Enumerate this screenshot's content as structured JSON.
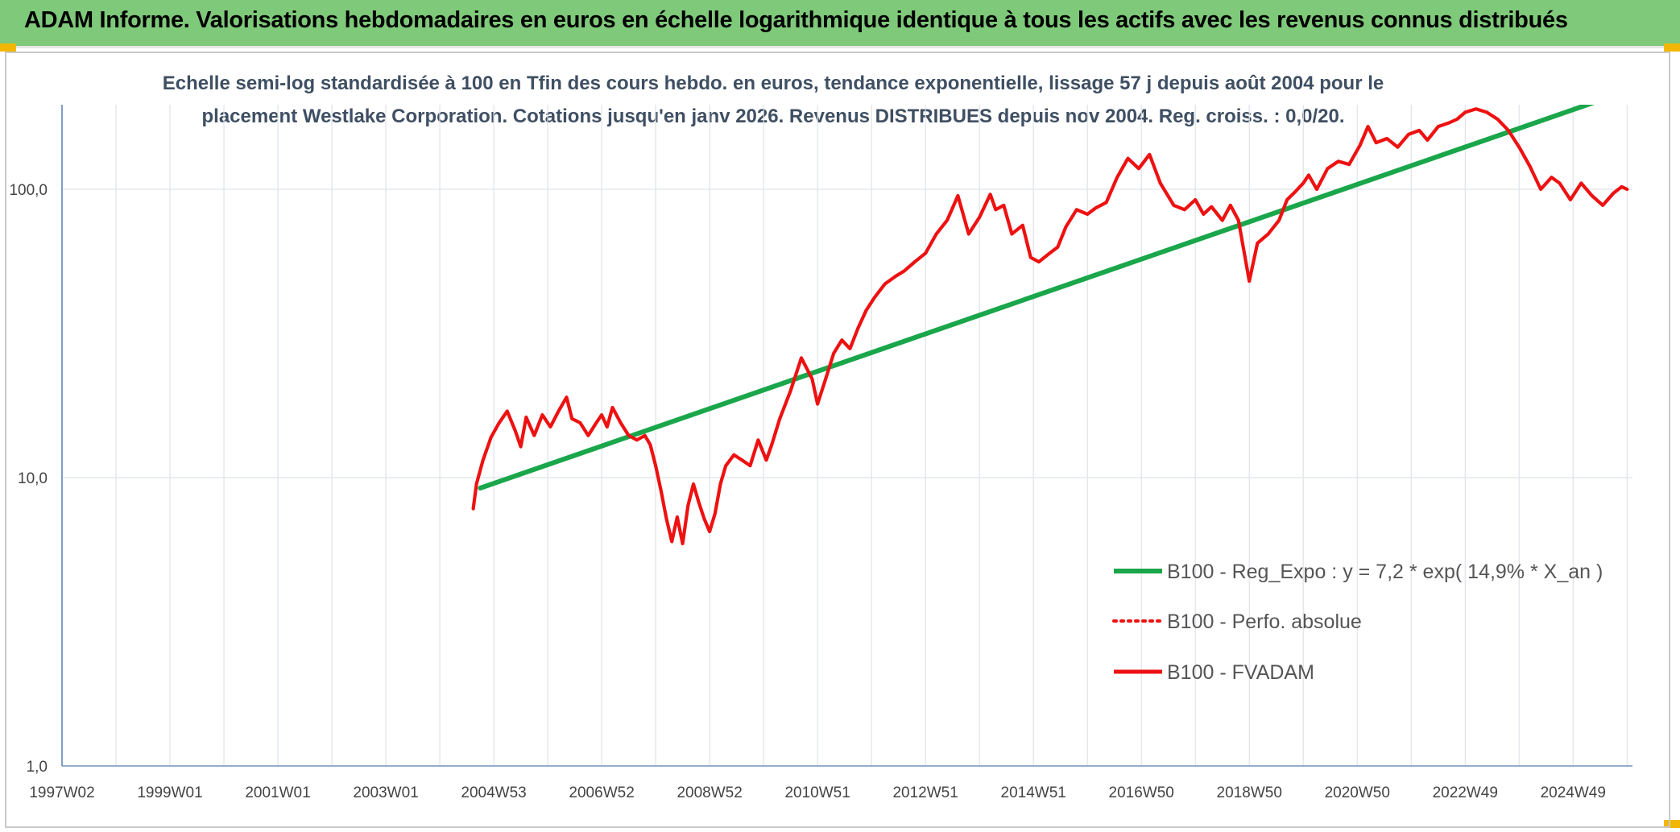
{
  "header": {
    "title": "ADAM Informe. Valorisations hebdomadaires en euros en échelle logarithmique identique à tous les actifs avec les revenus connus distribués"
  },
  "colors": {
    "banner": "#7fc97a",
    "corner_marker": "#f2b705",
    "trend_line": "#1aa64a",
    "price_line": "#ee1111",
    "subtitle_text": "#3f4f63"
  },
  "chart_data": {
    "type": "line",
    "title_line1": "Echelle semi-log standardisée à 100 en Tfin des cours hebdo. en euros, tendance exponentielle, lissage 57 j depuis août 2004 pour le",
    "title_line2": "placement Westlake Corporation. Cotations jusqu'en janv 2026. Revenus DISTRIBUES depuis nov 2004. Reg. croiss. : 0,0/20.",
    "y_scale": "log",
    "ylim": [
      1,
      190
    ],
    "y_ticks": [
      1,
      10,
      100
    ],
    "y_tick_labels": [
      "1,0",
      "10,0",
      "100,0"
    ],
    "xlim": [
      1997.0,
      2026.1
    ],
    "x_tick_positions": [
      1997.0,
      1999.0,
      2001.0,
      2003.0,
      2005.0,
      2007.0,
      2009.0,
      2011.0,
      2013.0,
      2015.0,
      2017.0,
      2019.0,
      2021.0,
      2023.0,
      2025.0
    ],
    "x_tick_labels": [
      "1997W02",
      "1999W01",
      "2001W01",
      "2003W01",
      "2004W53",
      "2006W52",
      "2008W52",
      "2010W51",
      "2012W51",
      "2014W51",
      "2016W50",
      "2018W50",
      "2020W50",
      "2022W49",
      "2024W49"
    ],
    "grid": true,
    "legend_placement": "right",
    "series": [
      {
        "name": "B100 - Reg_Expo : y = 7,2 * exp( 14,9% *  X_an )",
        "style": "solid-thick",
        "color": "#1aa64a",
        "x": [
          2004.75,
          2025.55
        ],
        "y": [
          9.2,
          205
        ]
      },
      {
        "name": "B100 - Perfo. absolue",
        "style": "dotted",
        "color": "#ee1111",
        "x": [],
        "y": []
      },
      {
        "name": "B100 - FVADAM",
        "style": "solid",
        "color": "#ee1111",
        "x": [
          2004.62,
          2004.68,
          2004.8,
          2004.95,
          2005.1,
          2005.25,
          2005.4,
          2005.5,
          2005.6,
          2005.75,
          2005.9,
          2006.05,
          2006.2,
          2006.35,
          2006.45,
          2006.6,
          2006.75,
          2006.9,
          2007.0,
          2007.1,
          2007.2,
          2007.35,
          2007.5,
          2007.65,
          2007.8,
          2007.9,
          2008.0,
          2008.1,
          2008.2,
          2008.3,
          2008.4,
          2008.5,
          2008.6,
          2008.7,
          2008.8,
          2008.9,
          2009.0,
          2009.1,
          2009.2,
          2009.3,
          2009.45,
          2009.6,
          2009.75,
          2009.9,
          2010.05,
          2010.15,
          2010.3,
          2010.5,
          2010.7,
          2010.9,
          2011.0,
          2011.15,
          2011.3,
          2011.45,
          2011.6,
          2011.75,
          2011.9,
          2012.05,
          2012.25,
          2012.45,
          2012.6,
          2012.8,
          2013.0,
          2013.2,
          2013.4,
          2013.6,
          2013.8,
          2014.0,
          2014.2,
          2014.3,
          2014.45,
          2014.6,
          2014.8,
          2014.95,
          2015.1,
          2015.3,
          2015.45,
          2015.6,
          2015.8,
          2016.0,
          2016.15,
          2016.35,
          2016.55,
          2016.75,
          2016.95,
          2017.15,
          2017.35,
          2017.6,
          2017.8,
          2018.0,
          2018.15,
          2018.3,
          2018.5,
          2018.65,
          2018.8,
          2019.0,
          2019.15,
          2019.35,
          2019.55,
          2019.7,
          2019.85,
          2020.0,
          2020.1,
          2020.25,
          2020.45,
          2020.65,
          2020.85,
          2021.05,
          2021.2,
          2021.35,
          2021.55,
          2021.75,
          2021.95,
          2022.15,
          2022.3,
          2022.5,
          2022.7,
          2022.85,
          2023.0,
          2023.2,
          2023.4,
          2023.6,
          2023.8,
          2024.0,
          2024.2,
          2024.4,
          2024.6,
          2024.75,
          2024.95,
          2025.15,
          2025.35,
          2025.55,
          2025.75,
          2025.9,
          2026.0
        ],
        "y": [
          7.8,
          9.5,
          11.5,
          13.8,
          15.5,
          17.0,
          14.5,
          12.8,
          16.2,
          14.0,
          16.5,
          15.0,
          17.0,
          19.0,
          16.0,
          15.5,
          14.0,
          15.5,
          16.5,
          15.0,
          17.5,
          15.5,
          14.0,
          13.5,
          14.0,
          13.0,
          11.0,
          9.0,
          7.2,
          6.0,
          7.3,
          5.9,
          8.0,
          9.5,
          8.2,
          7.2,
          6.5,
          7.5,
          9.5,
          11.0,
          12.0,
          11.5,
          11.0,
          13.5,
          11.5,
          13.0,
          16.0,
          20.0,
          26.0,
          22.0,
          18.0,
          22.0,
          27.0,
          30.0,
          28.0,
          33.0,
          38.0,
          42.0,
          47.0,
          50.0,
          52.0,
          56.0,
          60.0,
          70.0,
          78.0,
          95.0,
          70.0,
          80.0,
          96.0,
          85.0,
          88.0,
          70.0,
          75.0,
          58.0,
          56.0,
          60.0,
          63.0,
          74.0,
          85.0,
          82.0,
          86.0,
          90.0,
          110.0,
          128.0,
          118.0,
          132.0,
          105.0,
          88.0,
          85.0,
          92.0,
          82.0,
          87.0,
          78.0,
          88.0,
          78.0,
          48.0,
          65.0,
          70.0,
          78.0,
          92.0,
          98.0,
          105.0,
          112.0,
          100.0,
          118.0,
          125.0,
          122.0,
          142.0,
          165.0,
          145.0,
          150.0,
          140.0,
          155.0,
          160.0,
          148.0,
          165.0,
          170.0,
          175.0,
          185.0,
          190.0,
          185.0,
          175.0,
          160.0,
          140.0,
          120.0,
          100.0,
          110.0,
          105.0,
          92.0,
          105.0,
          95.0,
          88.0,
          97.0,
          102.0,
          100.0
        ]
      }
    ]
  }
}
